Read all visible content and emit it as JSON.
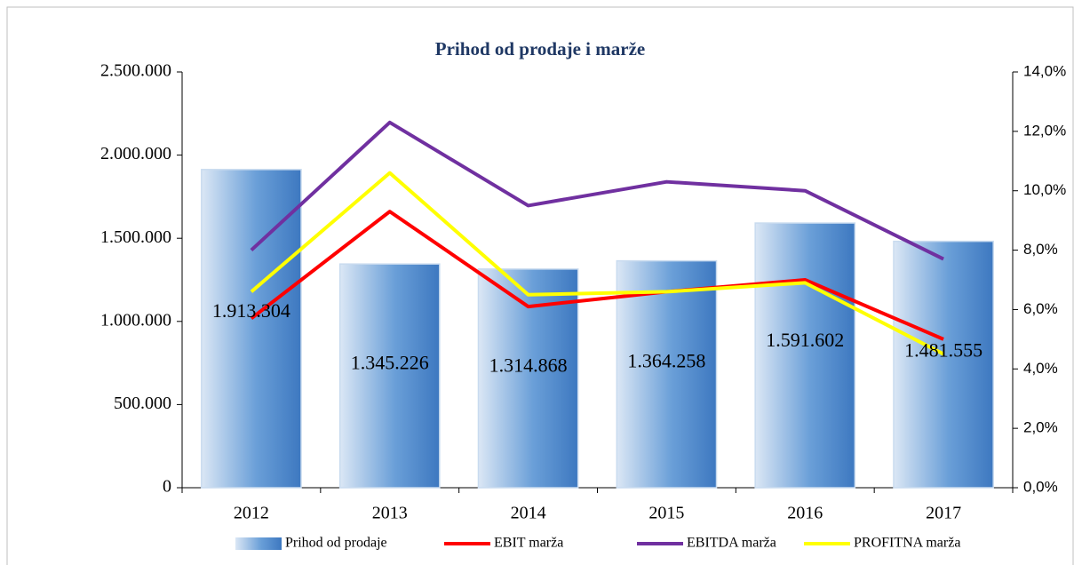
{
  "chart_data": {
    "type": "bar_line_combo",
    "title": "Prihod od prodaje i marže",
    "categories": [
      "2012",
      "2013",
      "2014",
      "2015",
      "2016",
      "2017"
    ],
    "series": [
      {
        "name": "Prihod od prodaje",
        "type": "bar",
        "color": "#4a86c8",
        "values": [
          1913304,
          1345226,
          1314868,
          1364258,
          1591602,
          1481555
        ],
        "value_labels": [
          "1.913.304",
          "1.345.226",
          "1.314.868",
          "1.364.258",
          "1.591.602",
          "1.481.555"
        ]
      },
      {
        "name": "EBIT marža",
        "type": "line",
        "axis": "y2",
        "color": "#ff0000",
        "values": [
          5.7,
          9.3,
          6.1,
          6.6,
          7.0,
          5.0
        ]
      },
      {
        "name": "EBITDA marža",
        "type": "line",
        "axis": "y2",
        "color": "#7030a0",
        "values": [
          8.0,
          12.3,
          9.5,
          10.3,
          10.0,
          7.7
        ]
      },
      {
        "name": "PROFITNA marža",
        "type": "line",
        "axis": "y2",
        "color": "#ffff00",
        "values": [
          6.6,
          10.6,
          6.5,
          6.6,
          6.9,
          4.5
        ]
      }
    ],
    "ylim": [
      0,
      2500000
    ],
    "yticks": [
      0,
      {
        "value": 500000,
        "label": "500.000"
      },
      {
        "value": 1000000,
        "label": "1.000.000"
      },
      {
        "value": 1500000,
        "label": "1.500.000"
      },
      {
        "value": 2000000,
        "label": "2.000.000"
      },
      {
        "value": 2500000,
        "label": "2.500.000"
      }
    ],
    "y2lim": [
      0,
      14
    ],
    "y2ticks": [
      {
        "value": 0,
        "label": "0,0%"
      },
      {
        "value": 2,
        "label": "2,0%"
      },
      {
        "value": 4,
        "label": "4,0%"
      },
      {
        "value": 6,
        "label": "6,0%"
      },
      {
        "value": 8,
        "label": "8,0%"
      },
      {
        "value": 10,
        "label": "10,0%"
      },
      {
        "value": 12,
        "label": "12,0%"
      },
      {
        "value": 14,
        "label": "14,0%"
      }
    ],
    "legend": "bottom"
  }
}
